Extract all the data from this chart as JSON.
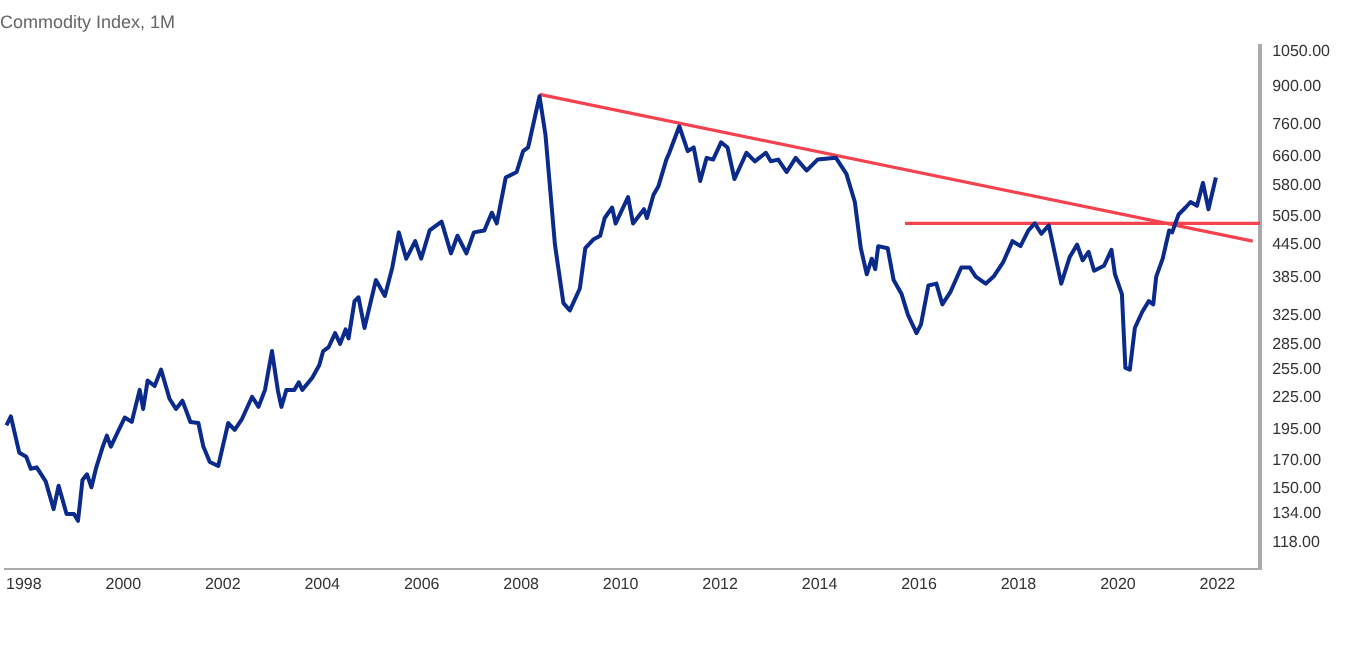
{
  "chart_data": {
    "type": "line",
    "title": "Commodity Index, 1M",
    "log": "y",
    "grid": false,
    "legend": false,
    "marker": "none",
    "line_style": "solid",
    "xlim": [
      1997.62,
      2022.86
    ],
    "xticks": [
      1998,
      2000,
      2002,
      2004,
      2006,
      2008,
      2010,
      2012,
      2014,
      2016,
      2018,
      2020,
      2022
    ],
    "ylim": [
      105,
      1080
    ],
    "yticks": [
      {
        "value": 118,
        "label": "118.00"
      },
      {
        "value": 134,
        "label": "134.00"
      },
      {
        "value": 150,
        "label": "150.00"
      },
      {
        "value": 170,
        "label": "170.00"
      },
      {
        "value": 195,
        "label": "195.00"
      },
      {
        "value": 225,
        "label": "225.00"
      },
      {
        "value": 255,
        "label": "255.00"
      },
      {
        "value": 285,
        "label": "285.00"
      },
      {
        "value": 325,
        "label": "325.00"
      },
      {
        "value": 385,
        "label": "385.00"
      },
      {
        "value": 445,
        "label": "445.00"
      },
      {
        "value": 505,
        "label": "505.00"
      },
      {
        "value": 580,
        "label": "580.00"
      },
      {
        "value": 660,
        "label": "660.00"
      },
      {
        "value": 760,
        "label": "760.00"
      },
      {
        "value": 900,
        "label": "900.00"
      },
      {
        "value": 1050,
        "label": "1050.00"
      }
    ],
    "series": [
      {
        "color": "#0a2a8c",
        "x": [
          1997.65,
          1997.74,
          1997.91,
          1998.05,
          1998.14,
          1998.26,
          1998.44,
          1998.6,
          1998.7,
          1998.86,
          1999.01,
          1999.09,
          1999.18,
          1999.27,
          1999.36,
          1999.45,
          1999.58,
          1999.67,
          1999.75,
          1999.91,
          2000.03,
          2000.17,
          2000.33,
          2000.4,
          2000.49,
          2000.63,
          2000.76,
          2000.93,
          2001.06,
          2001.19,
          2001.35,
          2001.51,
          2001.61,
          2001.74,
          2001.91,
          2002.11,
          2002.24,
          2002.38,
          2002.59,
          2002.72,
          2002.85,
          2002.99,
          2003.11,
          2003.18,
          2003.28,
          2003.44,
          2003.53,
          2003.6,
          2003.8,
          2003.94,
          2004.02,
          2004.13,
          2004.26,
          2004.36,
          2004.47,
          2004.53,
          2004.65,
          2004.73,
          2004.85,
          2005.08,
          2005.26,
          2005.41,
          2005.54,
          2005.69,
          2005.87,
          2005.99,
          2006.16,
          2006.4,
          2006.59,
          2006.72,
          2006.9,
          2007.05,
          2007.26,
          2007.41,
          2007.51,
          2007.69,
          2007.91,
          2008.04,
          2008.14,
          2008.37,
          2008.49,
          2008.68,
          2008.85,
          2008.98,
          2009.18,
          2009.29,
          2009.46,
          2009.59,
          2009.68,
          2009.83,
          2009.9,
          2010.15,
          2010.25,
          2010.47,
          2010.53,
          2010.66,
          2010.76,
          2010.92,
          2010.98,
          2011.18,
          2011.35,
          2011.47,
          2011.6,
          2011.73,
          2011.86,
          2012.02,
          2012.15,
          2012.29,
          2012.53,
          2012.7,
          2012.92,
          2013.02,
          2013.17,
          2013.34,
          2013.52,
          2013.74,
          2013.96,
          2014.33,
          2014.54,
          2014.71,
          2014.83,
          2014.95,
          2015.05,
          2015.12,
          2015.18,
          2015.37,
          2015.49,
          2015.65,
          2015.78,
          2015.95,
          2016.04,
          2016.19,
          2016.35,
          2016.47,
          2016.63,
          2016.85,
          2017.02,
          2017.14,
          2017.34,
          2017.5,
          2017.69,
          2017.88,
          2018.04,
          2018.2,
          2018.33,
          2018.46,
          2018.61,
          2018.86,
          2019.03,
          2019.18,
          2019.29,
          2019.41,
          2019.52,
          2019.72,
          2019.87,
          2019.94,
          2020.08,
          2020.15,
          2020.24,
          2020.34,
          2020.49,
          2020.62,
          2020.71,
          2020.77,
          2020.9,
          2021.03,
          2021.09,
          2021.22,
          2021.36,
          2021.46,
          2021.59,
          2021.71,
          2021.82,
          2021.97
        ],
        "values": [
          199,
          207,
          176,
          173,
          164,
          165,
          155,
          137,
          152,
          134,
          134,
          130,
          156,
          160,
          151,
          164,
          180,
          190,
          181,
          195,
          206,
          202,
          233,
          214,
          243,
          237,
          255,
          224,
          214,
          222,
          202,
          201,
          181,
          169,
          166,
          201,
          195,
          204,
          226,
          216,
          233,
          277,
          232,
          216,
          233,
          233,
          241,
          233,
          246,
          260,
          277,
          282,
          300,
          286,
          305,
          293,
          346,
          352,
          307,
          380,
          354,
          402,
          470,
          418,
          452,
          418,
          474,
          493,
          428,
          463,
          428,
          470,
          474,
          513,
          489,
          600,
          615,
          675,
          686,
          862,
          725,
          445,
          343,
          332,
          366,
          438,
          456,
          463,
          501,
          525,
          489,
          550,
          489,
          521,
          501,
          555,
          577,
          650,
          670,
          754,
          675,
          686,
          591,
          655,
          650,
          702,
          686,
          596,
          670,
          645,
          670,
          645,
          650,
          615,
          655,
          619,
          650,
          655,
          610,
          538,
          438,
          390,
          418,
          399,
          442,
          438,
          380,
          357,
          325,
          300,
          312,
          371,
          374,
          341,
          360,
          402,
          402,
          386,
          374,
          386,
          411,
          452,
          442,
          474,
          489,
          467,
          485,
          374,
          421,
          445,
          415,
          431,
          396,
          405,
          435,
          390,
          357,
          257,
          255,
          307,
          330,
          346,
          341,
          386,
          418,
          474,
          470,
          509,
          525,
          538,
          529,
          586,
          521,
          600
        ]
      },
      {
        "color": "#f5424f",
        "x": [
          2008.37,
          2022.71
        ],
        "values": [
          869,
          452
        ]
      },
      {
        "color": "#f5424f",
        "x": [
          2015.72,
          2022.86
        ],
        "values": [
          489,
          489
        ]
      }
    ]
  }
}
